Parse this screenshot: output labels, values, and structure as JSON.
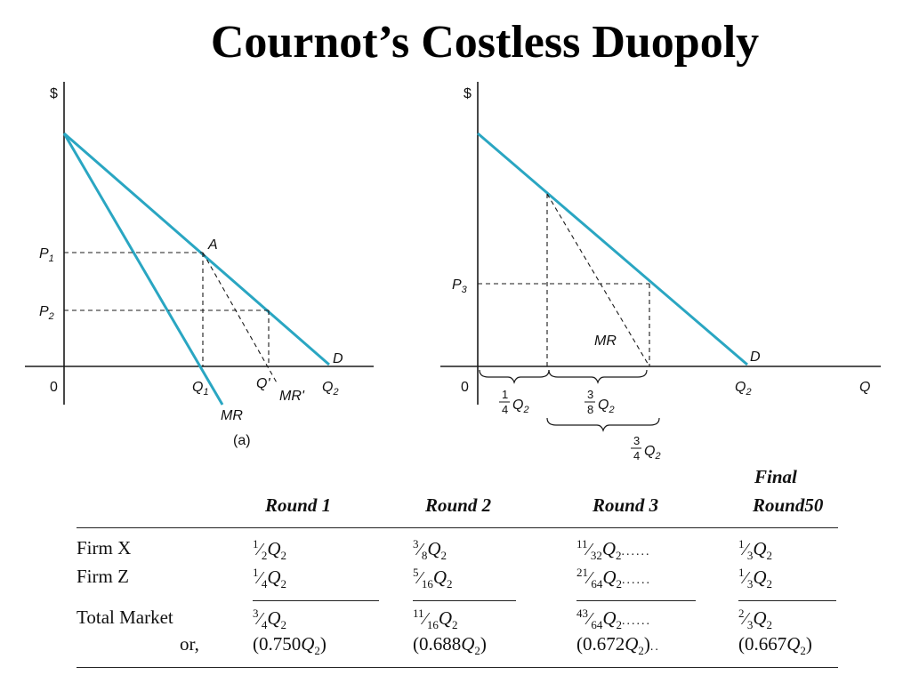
{
  "title": "Cournot’s Costless Duopoly",
  "panel_a": {
    "y_axis": "$",
    "origin": "0",
    "p1": "P",
    "p1_sub": "1",
    "p2": "P",
    "p2_sub": "2",
    "point_a": "A",
    "q1": "Q",
    "q1_sub": "1",
    "q_prime": "Q'",
    "mr_prime": "MR'",
    "q2": "Q",
    "q2_sub": "2",
    "d": "D",
    "mr": "MR",
    "caption": "(a)"
  },
  "panel_b": {
    "y_axis": "$",
    "origin": "0",
    "p3": "P",
    "p3_sub": "3",
    "mr": "MR",
    "d": "D",
    "q2": "Q",
    "q2_sub": "2",
    "x_axis": "Q",
    "quarter_num": "1",
    "quarter_den": "4",
    "three_eighths_num": "3",
    "three_eighths_den": "8",
    "three_quarters_num": "3",
    "three_quarters_den": "4",
    "q2_label": "Q",
    "q2_label_sub": "2"
  },
  "table": {
    "headers": {
      "round1": "Round 1",
      "round2": "Round 2",
      "round3": "Round 3",
      "final_line1": "Final",
      "final_line2": "Round",
      "slide_number": "50"
    },
    "rows": [
      {
        "label": "Firm X",
        "r1": [
          "1",
          "2"
        ],
        "r2": [
          "3",
          "8"
        ],
        "r3": [
          "11",
          "32"
        ],
        "final": [
          "1",
          "3"
        ],
        "r3_dots": "......"
      },
      {
        "label": "Firm Z",
        "r1": [
          "1",
          "4"
        ],
        "r2": [
          "5",
          "16"
        ],
        "r3": [
          "21",
          "64"
        ],
        "final": [
          "1",
          "3"
        ],
        "r3_dots": "......"
      },
      {
        "label": "Total Market",
        "r1": [
          "3",
          "4"
        ],
        "r2": [
          "11",
          "16"
        ],
        "r3": [
          "43",
          "64"
        ],
        "final": [
          "2",
          "3"
        ],
        "r3_dots": "......"
      }
    ],
    "or_row": {
      "label": "or,",
      "r1": "0.750",
      "r2": "0.688",
      "r3": "0.672",
      "r3_dots": "..",
      "final": "0.667"
    },
    "var": "Q",
    "var_sub": "2"
  }
}
